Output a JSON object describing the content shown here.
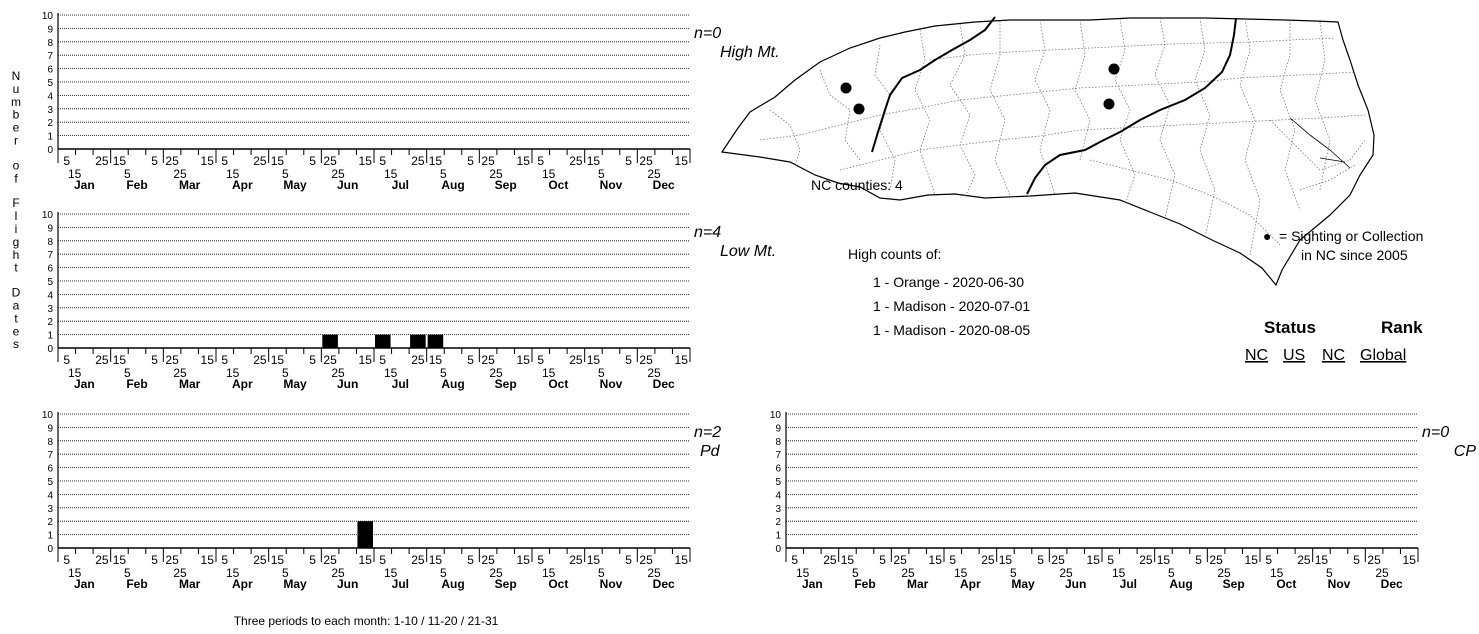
{
  "y_axis_label": "Number of Flight Dates",
  "footnote": "Three periods to each month: 1-10 / 11-20 / 21-31",
  "charts_common": {
    "months": [
      "Jan",
      "Feb",
      "Mar",
      "Apr",
      "May",
      "Jun",
      "Jul",
      "Aug",
      "Sep",
      "Oct",
      "Nov",
      "Dec"
    ],
    "period_ticks_top": [
      "5",
      "25",
      "15",
      "5",
      "25",
      "15",
      "5",
      "25",
      "15",
      "5",
      "25",
      "15",
      "5",
      "25",
      "15",
      "5",
      "25",
      "15",
      "5",
      "25",
      "15",
      "5",
      "25",
      "15"
    ],
    "period_ticks_bottom": [
      "15",
      "5",
      "25",
      "15",
      "5",
      "25",
      "15",
      "5",
      "25",
      "15",
      "5",
      "25"
    ],
    "y_ticks": [
      "0",
      "1",
      "2",
      "3",
      "4",
      "5",
      "6",
      "7",
      "8",
      "9",
      "10"
    ]
  },
  "chart_data": [
    {
      "type": "bar",
      "region": "High Mt.",
      "n_label": "n=0",
      "ylim": [
        0,
        10
      ],
      "periods": 36,
      "nonzero_bars": []
    },
    {
      "type": "bar",
      "region": "Low Mt.",
      "n_label": "n=4",
      "ylim": [
        0,
        10
      ],
      "periods": 36,
      "nonzero_bars": [
        {
          "month": "Jun",
          "period": 1,
          "value": 1
        },
        {
          "month": "Jul",
          "period": 1,
          "value": 1
        },
        {
          "month": "Jul",
          "period": 3,
          "value": 1
        },
        {
          "month": "Aug",
          "period": 1,
          "value": 1
        }
      ]
    },
    {
      "type": "bar",
      "region": "Pd",
      "n_label": "n=2",
      "ylim": [
        0,
        10
      ],
      "periods": 36,
      "nonzero_bars": [
        {
          "month": "Jun",
          "period": 3,
          "value": 2
        }
      ]
    },
    {
      "type": "bar",
      "region": "CP",
      "n_label": "n=0",
      "ylim": [
        0,
        10
      ],
      "periods": 36,
      "nonzero_bars": []
    }
  ],
  "map": {
    "counties_label": "NC counties: 4",
    "legend_symbol": "●",
    "legend_line1": "= Sighting or Collection",
    "legend_line2": "in NC since 2005"
  },
  "high_counts": {
    "title": "High counts of:",
    "items": [
      "1 - Orange - 2020-06-30",
      "1 - Madison - 2020-07-01",
      "1 - Madison - 2020-08-05"
    ]
  },
  "status_rank": {
    "status_label": "Status",
    "rank_label": "Rank",
    "nc": "NC",
    "us": "US",
    "nc2": "NC",
    "global": "Global"
  },
  "colors": {
    "bar": "#000000",
    "gridline": "#000000",
    "county_line": "#666666"
  }
}
